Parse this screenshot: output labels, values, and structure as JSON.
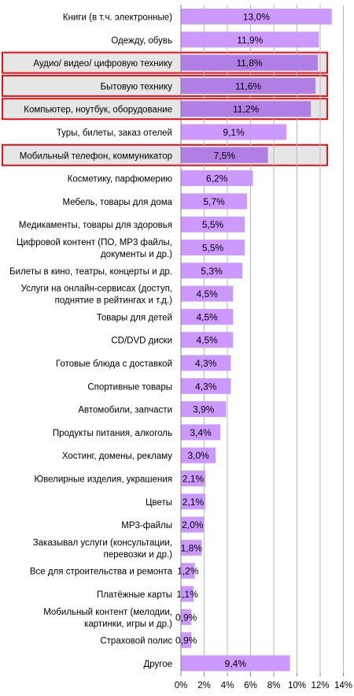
{
  "chart_data": {
    "type": "bar",
    "orientation": "horizontal",
    "title": "",
    "xlabel": "",
    "ylabel": "",
    "xlim": [
      0,
      14
    ],
    "x_ticks": [
      "0%",
      "2%",
      "4%",
      "6%",
      "8%",
      "10%",
      "12%",
      "14%"
    ],
    "grid": "vertical",
    "categories": [
      "Книги (в т.ч. электронные)",
      "Одежду, обувь",
      "Аудио/ видео/ цифровую технику",
      "Бытовую технику",
      "Компьютер, ноутбук, оборудование",
      "Туры, билеты, заказ отелей",
      "Мобильный телефон, коммуникатор",
      "Косметику, парфюмерию",
      "Мебель, товары для дома",
      "Медикаменты, товары для здоровья",
      "Цифровой контент (ПО, MP3 файлы,\nдокументы  и др.)",
      "Билеты в кино, театры, концерты и др.",
      "Услуги на онлайн-сервисах (доступ,\nподнятие в рейтингах и т.д.)",
      "Товары для детей",
      "CD/DVD диски",
      "Готовые блюда с доставкой",
      "Спортивные товары",
      "Автомобили, запчасти",
      "Продукты питания, алкоголь",
      "Хостинг, домены, рекламу",
      "Ювелирные изделия, украшения",
      "Цветы",
      "MP3-файлы",
      "Заказывал услуги (консультации,\nперевозки и др.)",
      "Все для строительства и ремонта",
      "Платёжные карты",
      "Мобильный контент (мелодии,\nкартинки, игры и др.)",
      "Страховой полис",
      "Другое"
    ],
    "values": [
      13.0,
      11.9,
      11.8,
      11.6,
      11.2,
      9.1,
      7.5,
      6.2,
      5.7,
      5.5,
      5.5,
      5.3,
      4.5,
      4.5,
      4.5,
      4.3,
      4.3,
      3.9,
      3.4,
      3.0,
      2.1,
      2.1,
      2.0,
      1.8,
      1.2,
      1.1,
      0.9,
      0.9,
      9.4
    ],
    "labels": [
      "13,0%",
      "11,9%",
      "11,8%",
      "11,6%",
      "11,2%",
      "9,1%",
      "7,5%",
      "6,2%",
      "5,7%",
      "5,5%",
      "5,5%",
      "5,3%",
      "4,5%",
      "4,5%",
      "4,5%",
      "4,3%",
      "4,3%",
      "3,9%",
      "3,4%",
      "3,0%",
      "2,1%",
      "2,1%",
      "2,0%",
      "1,8%",
      "1,2%",
      "1,1%",
      "0,9%",
      "0,9%",
      "9,4%"
    ],
    "highlighted": [
      2,
      3,
      4,
      6
    ],
    "colors": {
      "bar": "#cc99ff",
      "bar_highlighted": "#b07fe6",
      "highlight_fill": "#e6e6e6",
      "highlight_border": "#e8101a",
      "grid": "#b8b8b8",
      "axis": "#808080",
      "text": "#000000"
    }
  }
}
